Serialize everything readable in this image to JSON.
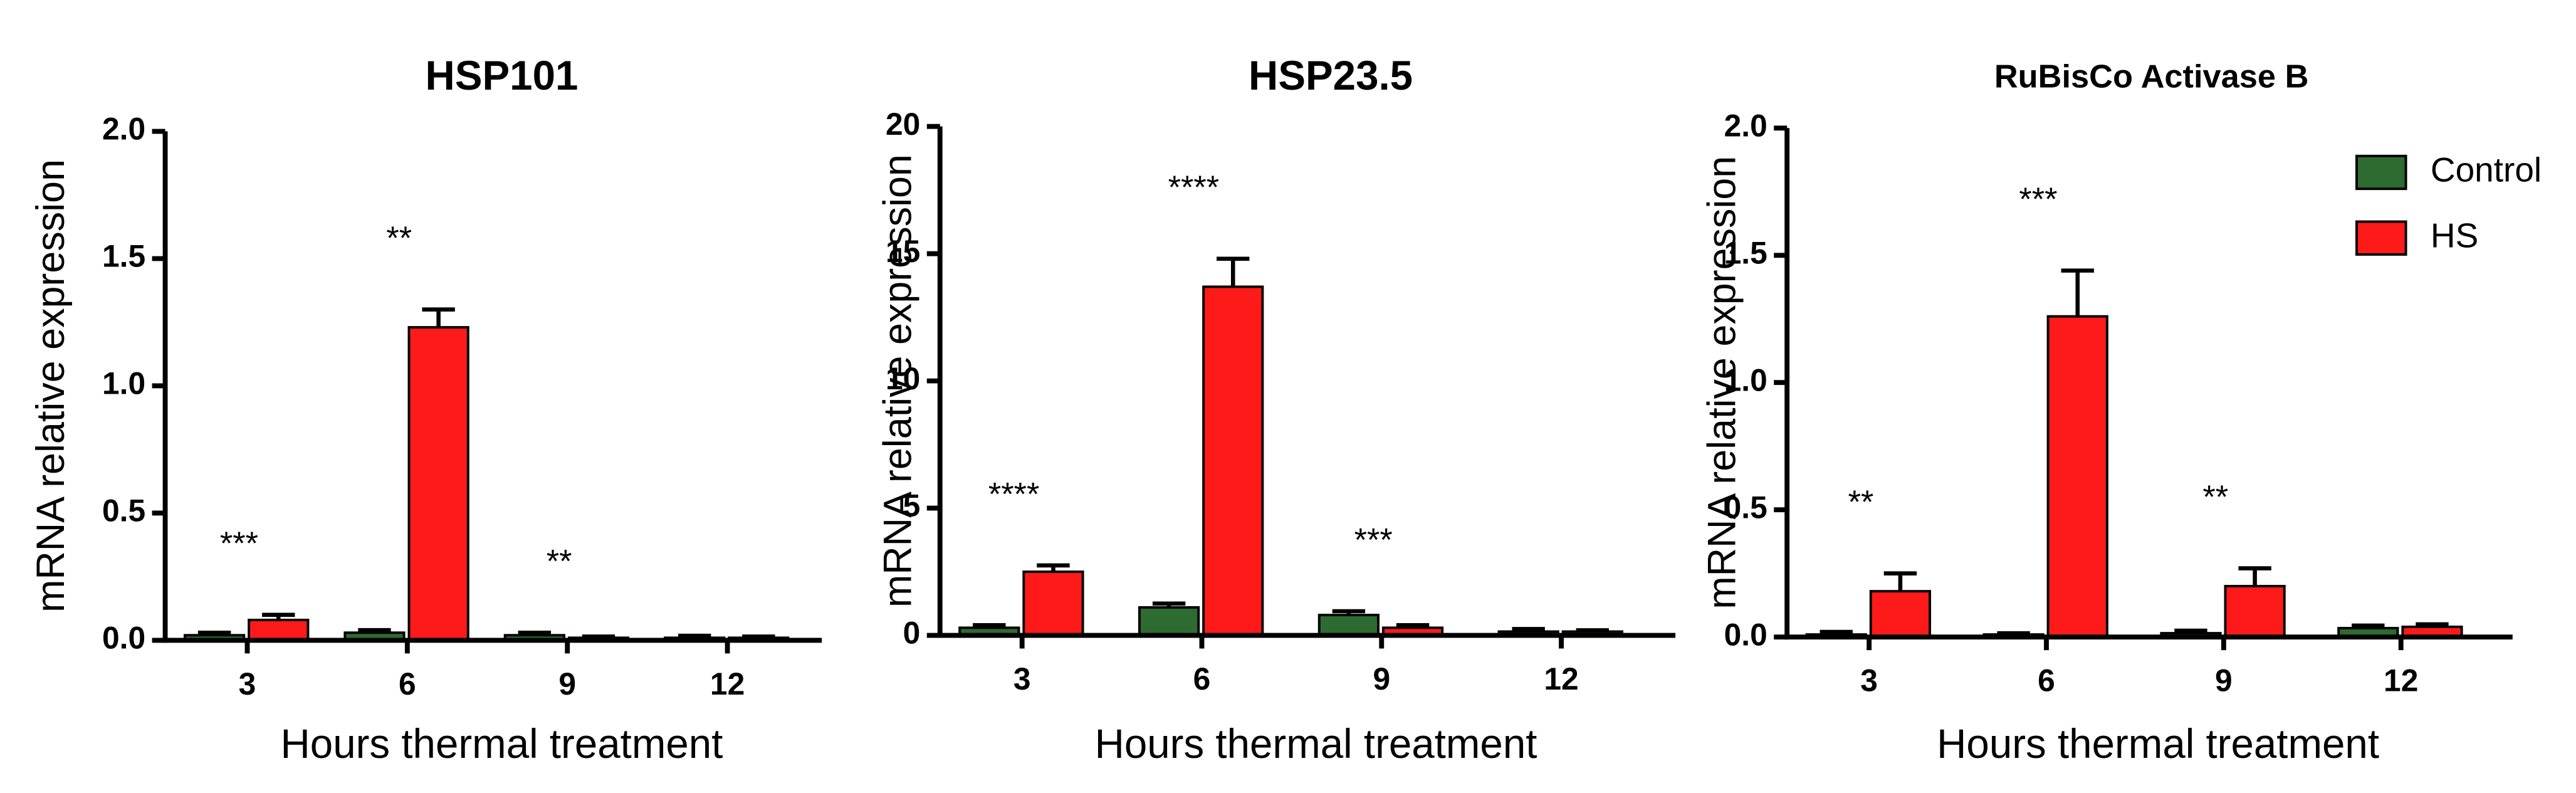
{
  "chart_data": [
    {
      "type": "bar",
      "title": "HSP101",
      "ylabel": "mRNA relative expression",
      "xlabel": "Hours thermal treatment",
      "categories": [
        "3",
        "6",
        "9",
        "12"
      ],
      "series": [
        {
          "name": "Control",
          "color": "#2e6b30",
          "values": [
            0.02,
            0.03,
            0.02,
            0.01
          ],
          "errors": [
            0.01,
            0.01,
            0.01,
            0.008
          ]
        },
        {
          "name": "HS",
          "color": "#ff1a1a",
          "values": [
            0.08,
            1.23,
            0.01,
            0.01
          ],
          "errors": [
            0.02,
            0.07,
            0.005,
            0.005
          ]
        }
      ],
      "annotations": [
        "***",
        "**",
        "**",
        null
      ],
      "ylim": [
        0,
        2
      ],
      "yticks": [
        {
          "value": 0,
          "label": "0.0"
        },
        {
          "value": 0.5,
          "label": "0.5"
        },
        {
          "value": 1,
          "label": "1.0"
        },
        {
          "value": 1.5,
          "label": "1.5"
        },
        {
          "value": 2,
          "label": "2.0"
        }
      ],
      "legend": false
    },
    {
      "type": "bar",
      "title": "HSP23.5",
      "ylabel": "mRNA relative expression",
      "xlabel": "Hours thermal treatment",
      "categories": [
        "3",
        "6",
        "9",
        "12"
      ],
      "series": [
        {
          "name": "Control",
          "color": "#2e6b30",
          "values": [
            0.3,
            1.1,
            0.8,
            0.15
          ],
          "errors": [
            0.1,
            0.15,
            0.15,
            0.1
          ]
        },
        {
          "name": "HS",
          "color": "#ff1a1a",
          "values": [
            2.5,
            13.7,
            0.3,
            0.15
          ],
          "errors": [
            0.25,
            1.1,
            0.1,
            0.05
          ]
        }
      ],
      "annotations": [
        "****",
        "****",
        "***",
        null
      ],
      "ylim": [
        0,
        20
      ],
      "yticks": [
        0,
        5,
        10,
        15,
        20
      ],
      "legend": false
    },
    {
      "type": "bar",
      "title": "RuBisCo Activase B",
      "ylabel": "mRNA relative expression",
      "xlabel": "Hours thermal treatment",
      "categories": [
        "3",
        "6",
        "9",
        "12"
      ],
      "series": [
        {
          "name": "Control",
          "color": "#2e6b30",
          "values": [
            0.01,
            0.01,
            0.015,
            0.035
          ],
          "errors": [
            0.01,
            0.005,
            0.01,
            0.01
          ]
        },
        {
          "name": "HS",
          "color": "#ff1a1a",
          "values": [
            0.18,
            1.26,
            0.2,
            0.04
          ],
          "errors": [
            0.07,
            0.18,
            0.07,
            0.01
          ]
        }
      ],
      "annotations": [
        "**",
        "***",
        "**",
        null
      ],
      "ylim": [
        0,
        2
      ],
      "yticks": [
        {
          "value": 0,
          "label": "0.0"
        },
        {
          "value": 0.5,
          "label": "0.5"
        },
        {
          "value": 1,
          "label": "1.0"
        },
        {
          "value": 1.5,
          "label": "1.5"
        },
        {
          "value": 2,
          "label": "2.0"
        }
      ],
      "legend": "top-right"
    }
  ]
}
